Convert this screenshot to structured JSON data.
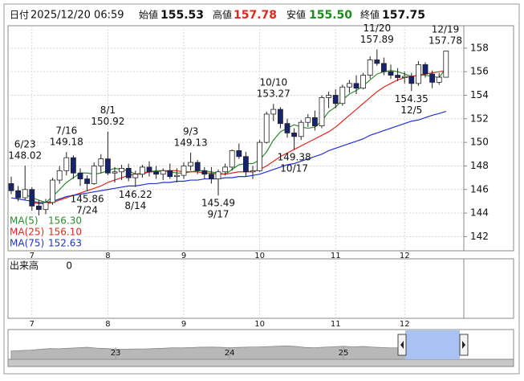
{
  "header": {
    "date_label": "日付",
    "date": "2025/12/20 06:59",
    "open_label": "始値",
    "open": "155.53",
    "high_label": "高値",
    "high": "157.78",
    "low_label": "安値",
    "low": "155.50",
    "close_label": "終値",
    "close": "157.75"
  },
  "chart_data": {
    "type": "candlestick",
    "categories": [
      null,
      null,
      null,
      "7",
      null,
      null,
      null,
      null,
      null,
      null,
      null,
      null,
      null,
      null,
      "8",
      null,
      null,
      null,
      null,
      null,
      null,
      null,
      null,
      null,
      null,
      "9",
      null,
      null,
      null,
      null,
      null,
      null,
      null,
      null,
      null,
      null,
      "10",
      null,
      null,
      null,
      null,
      null,
      null,
      null,
      null,
      null,
      null,
      "11",
      null,
      null,
      null,
      null,
      null,
      null,
      null,
      null,
      null,
      "12",
      null,
      null,
      null,
      null,
      null,
      null
    ],
    "open": [
      146.5,
      145.9,
      145.3,
      146.0,
      144.6,
      144.3,
      144.9,
      146.8,
      147.6,
      148.7,
      147.4,
      146.9,
      146.5,
      148.0,
      148.6,
      147.4,
      147.5,
      147.8,
      147.0,
      147.3,
      147.9,
      147.5,
      147.3,
      147.6,
      147.1,
      147.2,
      148.0,
      148.3,
      147.6,
      147.3,
      146.9,
      147.5,
      147.9,
      149.3,
      148.8,
      147.5,
      147.6,
      150.0,
      152.4,
      152.8,
      151.6,
      150.8,
      150.5,
      151.7,
      152.1,
      151.4,
      153.8,
      154.0,
      153.3,
      154.7,
      155.0,
      154.6,
      155.7,
      157.0,
      156.7,
      156.0,
      155.7,
      155.5,
      155.6,
      155.0,
      156.6,
      155.8,
      155.1,
      155.53
    ],
    "high": [
      147.1,
      146.3,
      148.02,
      146.2,
      145.1,
      145.2,
      147.0,
      148.0,
      149.18,
      148.9,
      147.8,
      147.2,
      148.3,
      149.0,
      150.92,
      147.9,
      148.1,
      148.2,
      147.6,
      148.1,
      148.4,
      148.0,
      147.8,
      148.2,
      147.8,
      148.3,
      149.13,
      148.5,
      147.9,
      147.9,
      147.7,
      148.2,
      149.4,
      149.9,
      149.2,
      148.0,
      150.2,
      152.6,
      153.27,
      153.0,
      152.0,
      151.2,
      151.9,
      152.4,
      152.7,
      154.0,
      154.3,
      154.5,
      154.9,
      155.3,
      155.7,
      155.9,
      157.3,
      157.89,
      157.2,
      156.6,
      156.3,
      156.0,
      155.9,
      156.9,
      156.8,
      156.1,
      155.9,
      157.78
    ],
    "low": [
      145.6,
      145.0,
      145.1,
      144.2,
      143.8,
      143.9,
      144.7,
      146.5,
      147.2,
      146.9,
      146.3,
      145.86,
      146.4,
      147.4,
      147.2,
      146.6,
      146.8,
      146.7,
      146.22,
      147.0,
      147.1,
      146.9,
      146.8,
      146.9,
      146.6,
      146.9,
      147.6,
      147.3,
      146.9,
      146.5,
      145.49,
      147.2,
      147.6,
      148.6,
      147.1,
      146.9,
      147.5,
      149.9,
      151.8,
      151.2,
      150.4,
      149.38,
      150.2,
      151.3,
      151.0,
      151.2,
      152.9,
      152.9,
      153.1,
      154.2,
      154.1,
      154.5,
      155.4,
      156.5,
      155.7,
      155.4,
      155.2,
      155.0,
      154.35,
      154.8,
      155.5,
      154.6,
      154.9,
      155.5
    ],
    "close": [
      145.9,
      145.3,
      146.0,
      144.6,
      144.3,
      144.9,
      146.8,
      147.6,
      148.7,
      147.4,
      146.9,
      146.5,
      148.0,
      148.6,
      147.4,
      147.5,
      147.8,
      147.0,
      147.3,
      147.9,
      147.5,
      147.3,
      147.6,
      147.1,
      147.2,
      148.0,
      148.3,
      147.6,
      147.3,
      146.9,
      147.5,
      147.9,
      149.3,
      148.8,
      147.5,
      147.6,
      150.0,
      152.4,
      152.8,
      151.6,
      150.8,
      150.5,
      151.7,
      152.1,
      151.4,
      153.8,
      154.0,
      153.3,
      154.7,
      155.0,
      154.6,
      155.7,
      157.0,
      156.7,
      156.0,
      155.7,
      155.5,
      155.6,
      155.0,
      156.6,
      155.8,
      155.1,
      155.53,
      157.75
    ],
    "up_color": "#ffffff",
    "down_color": "#16236e",
    "series": [
      {
        "name": "MA(5)",
        "color": "#2e8b2e",
        "current": "156.30",
        "values": [
          null,
          null,
          145.6,
          145.3,
          145.1,
          144.9,
          145.4,
          146.0,
          146.6,
          147.0,
          147.4,
          147.4,
          147.3,
          147.4,
          147.6,
          147.8,
          147.7,
          147.6,
          147.3,
          147.3,
          147.5,
          147.6,
          147.6,
          147.5,
          147.4,
          147.4,
          147.5,
          147.6,
          147.6,
          147.5,
          147.4,
          147.3,
          147.7,
          148.1,
          148.2,
          148.2,
          148.5,
          149.2,
          150.2,
          150.9,
          151.2,
          151.5,
          151.3,
          151.2,
          151.3,
          151.8,
          152.6,
          153.0,
          153.6,
          154.1,
          154.4,
          154.8,
          155.3,
          155.8,
          156.0,
          156.1,
          156.0,
          155.8,
          155.6,
          155.7,
          155.7,
          155.6,
          155.5,
          156.3
        ]
      },
      {
        "name": "MA(25)",
        "color": "#e0281e",
        "current": "156.10",
        "values": [
          null,
          null,
          null,
          144.9,
          144.8,
          144.8,
          144.9,
          145.1,
          145.3,
          145.5,
          145.7,
          145.9,
          146.1,
          146.3,
          146.6,
          146.8,
          147.0,
          147.2,
          147.3,
          147.4,
          147.5,
          147.5,
          147.6,
          147.6,
          147.6,
          147.5,
          147.5,
          147.5,
          147.4,
          147.4,
          147.3,
          147.3,
          147.4,
          147.5,
          147.5,
          147.5,
          147.7,
          148.0,
          148.4,
          148.8,
          149.1,
          149.4,
          149.7,
          150.0,
          150.3,
          150.6,
          150.9,
          151.3,
          151.8,
          152.3,
          152.8,
          153.3,
          153.8,
          154.3,
          154.7,
          155.0,
          155.3,
          155.5,
          155.6,
          155.7,
          155.8,
          155.9,
          156.0,
          156.1
        ]
      },
      {
        "name": "MA(75)",
        "color": "#2233cc",
        "current": "152.63",
        "values": [
          145.3,
          145.2,
          145.1,
          145.0,
          144.9,
          144.9,
          145.0,
          145.2,
          145.4,
          145.5,
          145.6,
          145.7,
          145.8,
          145.9,
          146.0,
          146.1,
          146.2,
          146.3,
          146.3,
          146.4,
          146.5,
          146.5,
          146.6,
          146.6,
          146.7,
          146.7,
          146.8,
          146.8,
          146.9,
          146.9,
          146.9,
          147.0,
          147.0,
          147.1,
          147.1,
          147.2,
          147.3,
          147.5,
          147.7,
          147.9,
          148.1,
          148.2,
          148.4,
          148.6,
          148.8,
          149.0,
          149.3,
          149.5,
          149.7,
          149.9,
          150.1,
          150.3,
          150.6,
          150.8,
          151.0,
          151.2,
          151.4,
          151.6,
          151.8,
          151.9,
          152.1,
          152.3,
          152.45,
          152.63
        ]
      }
    ],
    "ylim": [
      140.8,
      159.9
    ],
    "yticks": [
      142,
      144,
      146,
      148,
      150,
      152,
      154,
      156,
      158
    ],
    "grid": true,
    "annotations": [
      {
        "date": "6/23",
        "value": 148.02
      },
      {
        "date": "7/16",
        "value": 149.18
      },
      {
        "date": "7/24",
        "value": 145.86
      },
      {
        "date": "8/1",
        "value": 150.92
      },
      {
        "date": "8/14",
        "value": 146.22
      },
      {
        "date": "9/3",
        "value": 149.13
      },
      {
        "date": "9/17",
        "value": 145.49
      },
      {
        "date": "10/10",
        "value": 153.27
      },
      {
        "date": "10/17",
        "value": 149.38
      },
      {
        "date": "11/20",
        "value": 157.89
      },
      {
        "date": "12/5",
        "value": 154.35
      },
      {
        "date": "12/19",
        "value": 157.78
      }
    ],
    "volume": {
      "label": "出来高",
      "value": 0
    },
    "navigator": {
      "type": "area",
      "color": "#b8b8b8",
      "ylim": [
        40,
        300
      ],
      "categories": [
        null,
        null,
        null,
        null,
        null,
        null,
        null,
        null,
        null,
        null,
        null,
        "23",
        null,
        null,
        null,
        null,
        null,
        null,
        null,
        null,
        null,
        null,
        null,
        "24",
        null,
        null,
        null,
        null,
        null,
        null,
        null,
        null,
        null,
        null,
        null,
        "25",
        null,
        null,
        null,
        null,
        null,
        null,
        null,
        null,
        null,
        null,
        null,
        null
      ],
      "values": [
        115,
        118,
        122,
        129,
        136,
        135,
        139,
        144,
        148,
        140,
        137,
        130,
        131,
        133,
        133,
        136,
        139,
        144,
        143,
        145,
        149,
        150,
        148,
        144,
        147,
        150,
        151,
        154,
        157,
        161,
        155,
        146,
        144,
        149,
        153,
        157,
        152,
        155,
        150,
        145,
        143,
        144,
        147,
        147,
        148,
        152,
        155,
        156
      ]
    }
  }
}
